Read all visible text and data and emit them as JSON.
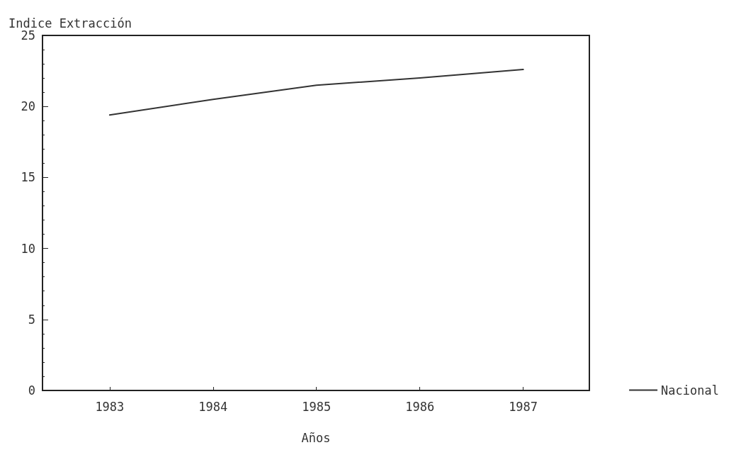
{
  "chart_data": {
    "type": "line",
    "ylabel": "Indice Extracción",
    "xlabel": "Años",
    "x": [
      1983,
      1984,
      1985,
      1986,
      1987
    ],
    "series": [
      {
        "name": "Nacional",
        "color": "#333333",
        "values": [
          19.4,
          20.5,
          21.5,
          22.0,
          22.6
        ]
      }
    ],
    "xlim": [
      1982.35,
      1987.64
    ],
    "xticks": [
      1983,
      1984,
      1985,
      1986,
      1987
    ],
    "ylim": [
      0,
      25
    ],
    "yticks": [
      0,
      5,
      10,
      15,
      20,
      25
    ],
    "grid": false,
    "legend": "bottom right",
    "marker": "none",
    "line_style": "solid"
  }
}
